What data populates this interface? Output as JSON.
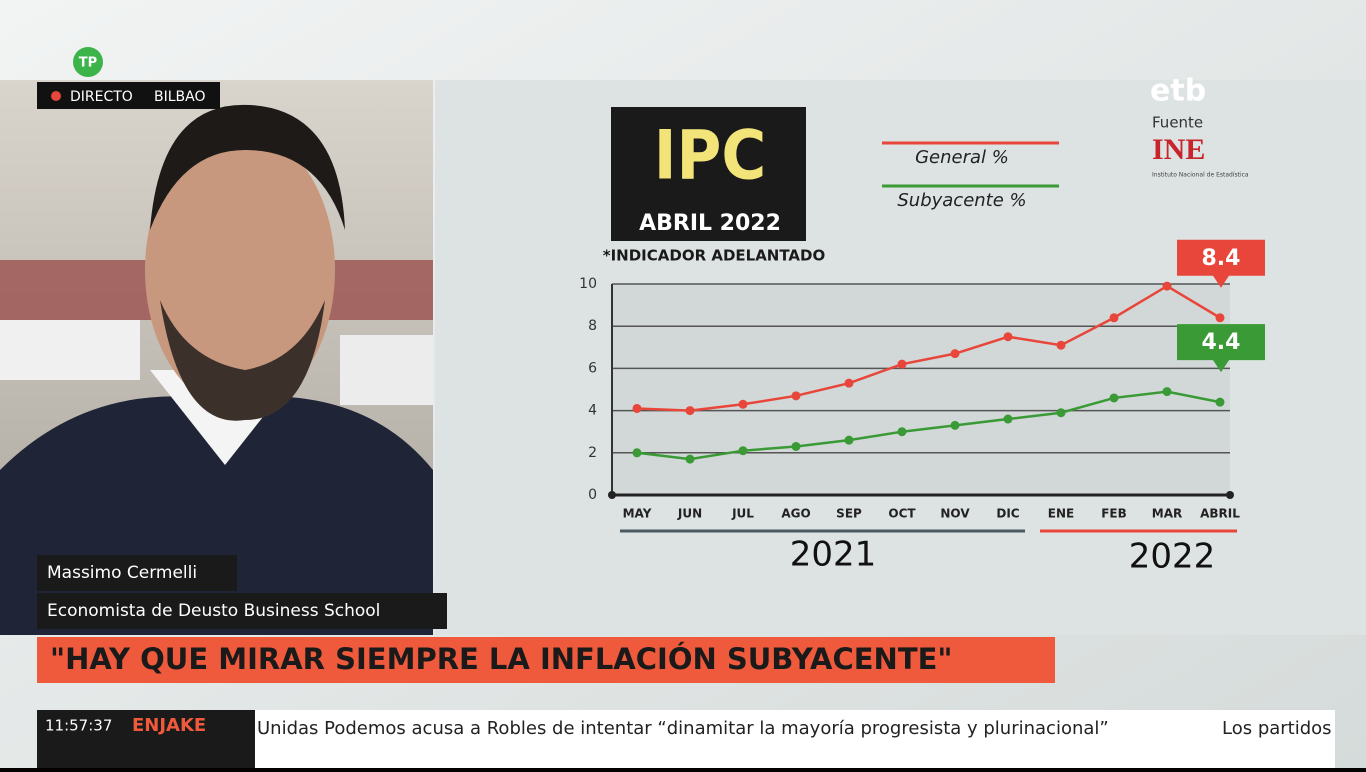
{
  "broadcast": {
    "channel_badge": "TP",
    "live_label": "DIRECTO",
    "location": "BILBAO",
    "network": "etb"
  },
  "speaker": {
    "name": "Massimo Cermelli",
    "role": "Economista de Deusto Business School"
  },
  "headline": "\"HAY QUE MIRAR SIEMPRE LA INFLACIÓN SUBYACENTE\"",
  "ticker": {
    "time": "11:57:37",
    "program": "ENJAKE",
    "text": "Unidas Podemos acusa a Robles de intentar “dinamitar la mayoría progresista y plurinacional”",
    "next": "Los partidos"
  },
  "chart_data": {
    "type": "line",
    "title": "IPC",
    "subtitle": "ABRIL 2022",
    "note": "*INDICADOR ADELANTADO",
    "source_label": "Fuente",
    "source": "INE",
    "source_caption": "Instituto Nacional de Estadística",
    "categories": [
      "MAY",
      "JUN",
      "JUL",
      "AGO",
      "SEP",
      "OCT",
      "NOV",
      "DIC",
      "ENE",
      "FEB",
      "MAR",
      "ABRIL"
    ],
    "years": [
      "2021",
      "2022"
    ],
    "series": [
      {
        "name": "General %",
        "color": "#e8463a",
        "values": [
          4.1,
          4.0,
          4.3,
          4.7,
          5.3,
          6.2,
          6.7,
          7.5,
          7.1,
          8.4,
          9.9,
          8.4
        ]
      },
      {
        "name": "Subyacente %",
        "color": "#3a9a35",
        "values": [
          2.0,
          1.7,
          2.1,
          2.3,
          2.6,
          3.0,
          3.3,
          3.6,
          3.9,
          4.6,
          4.9,
          4.4
        ]
      }
    ],
    "ylim": [
      0,
      10
    ],
    "yticks": [
      0,
      2,
      4,
      6,
      8,
      10
    ],
    "grid": true
  }
}
